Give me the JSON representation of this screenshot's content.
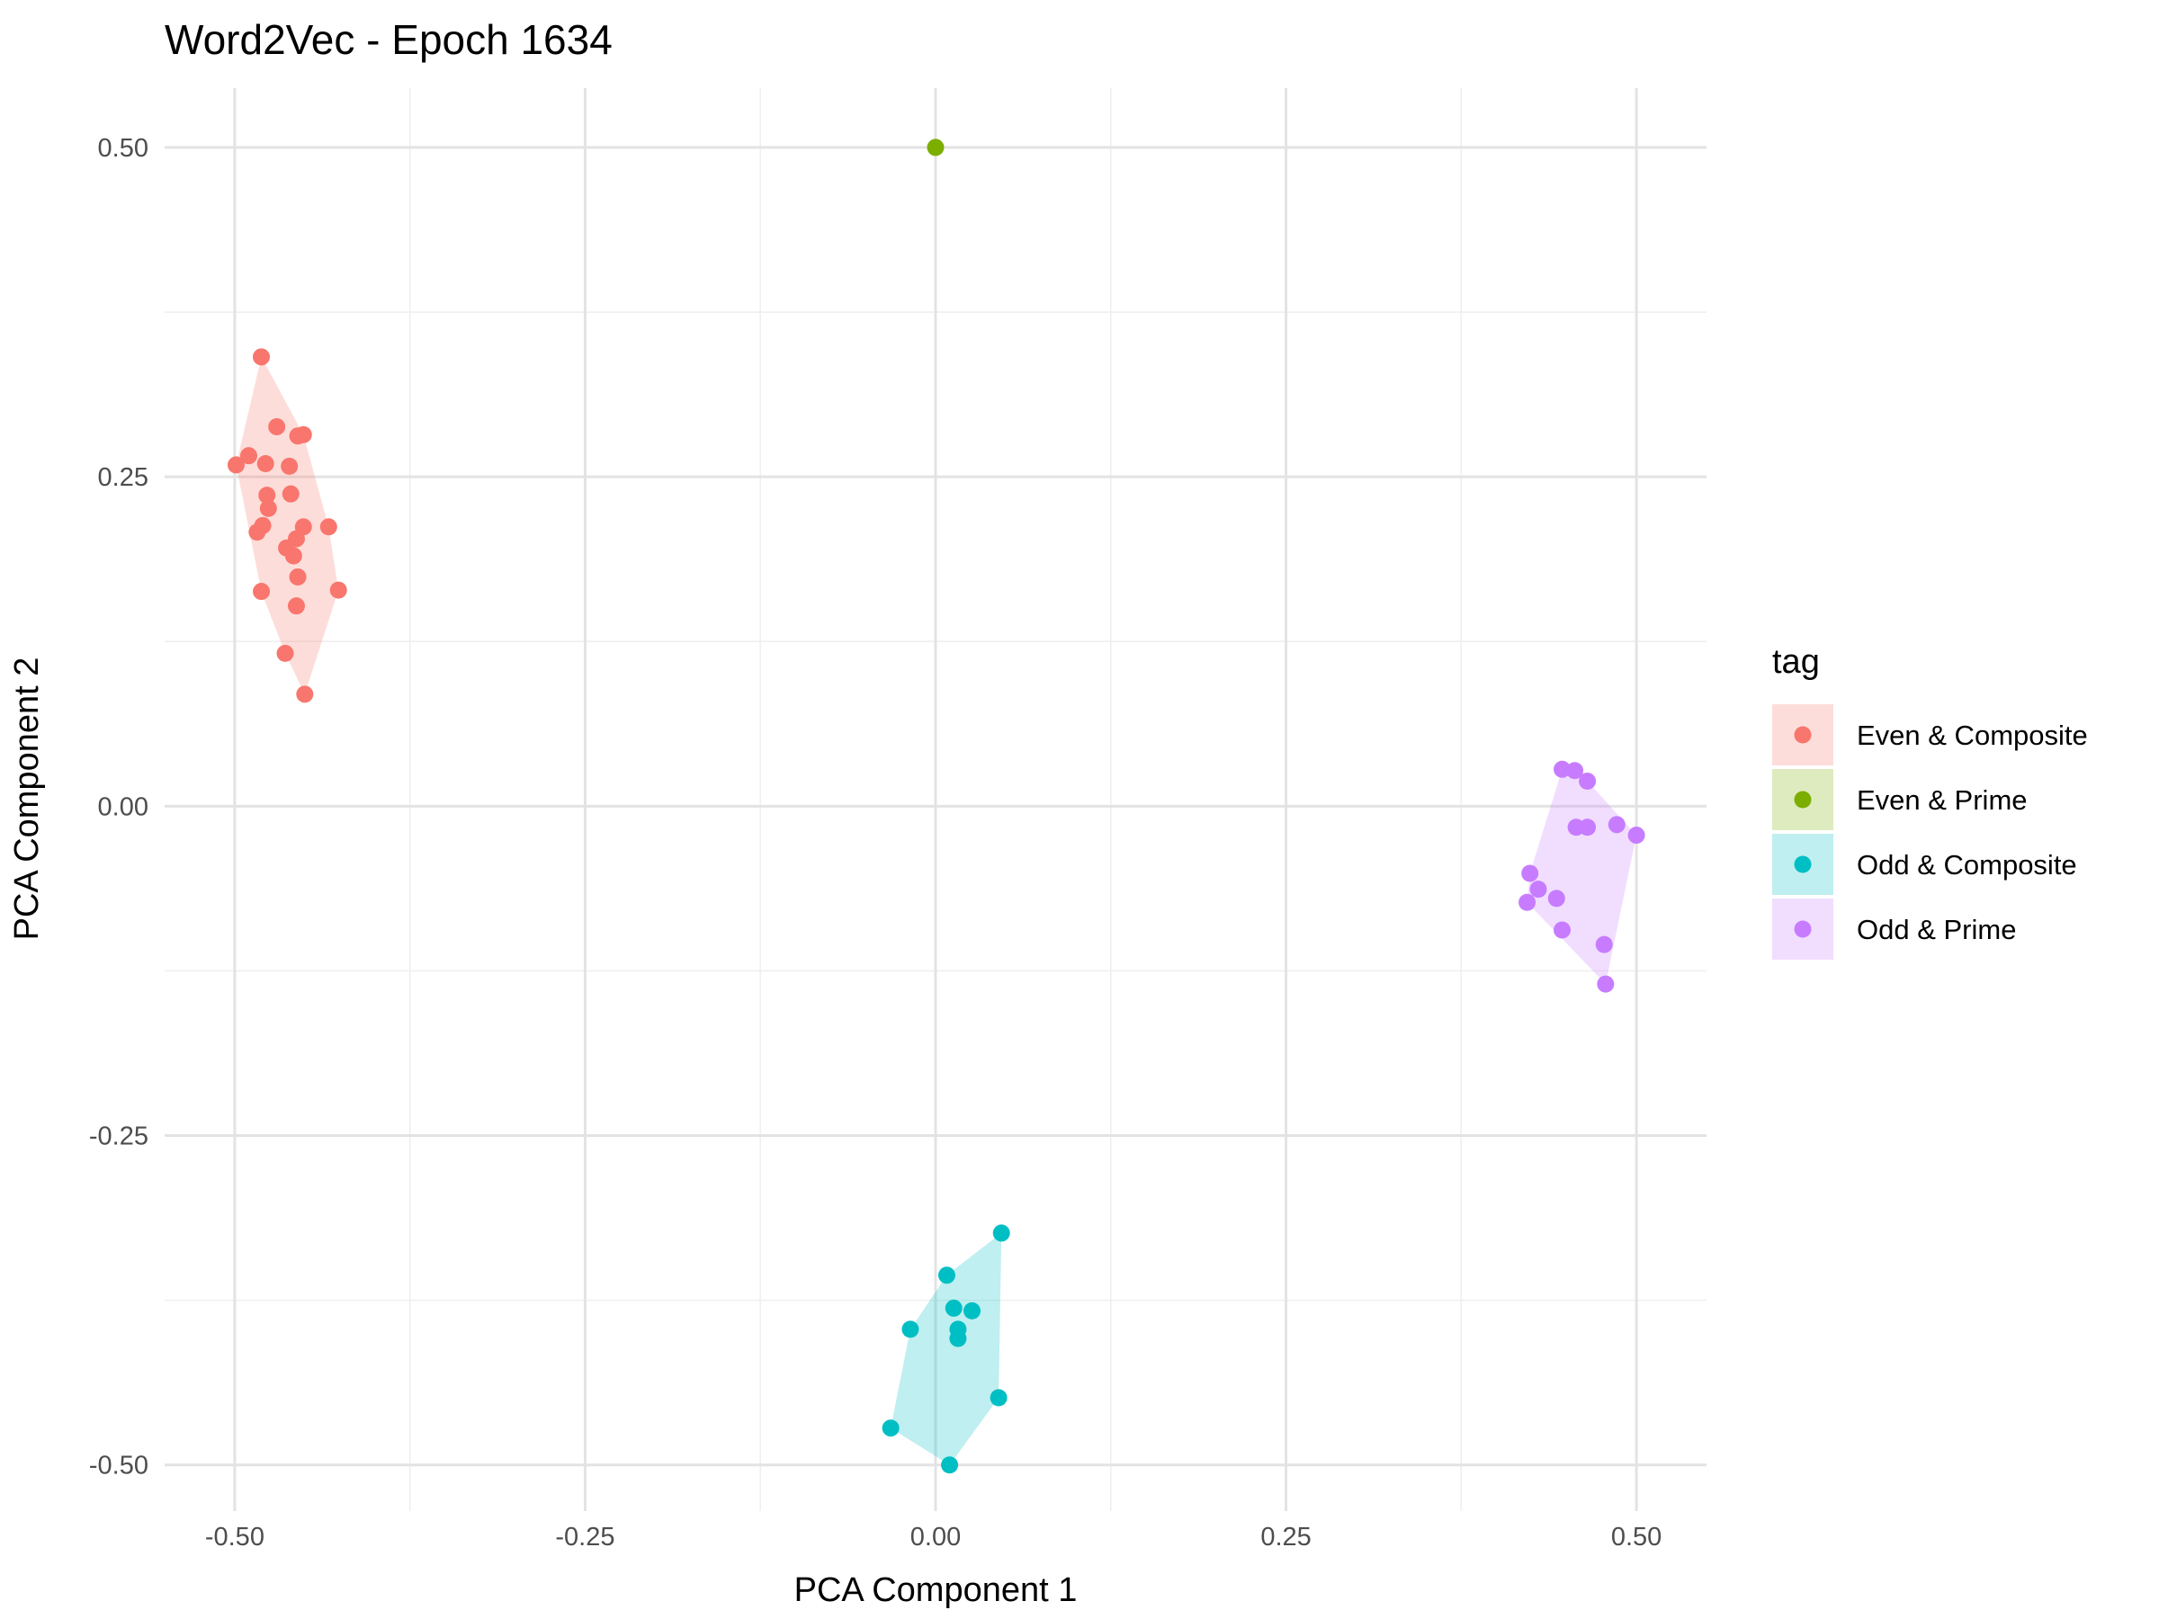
{
  "chart_data": {
    "type": "scatter",
    "title": "Word2Vec - Epoch 1634",
    "xlabel": "PCA Component 1",
    "ylabel": "PCA Component 2",
    "xlim": [
      -0.55,
      0.55
    ],
    "ylim": [
      -0.535,
      0.545
    ],
    "x_ticks": [
      -0.5,
      -0.25,
      0.0,
      0.25,
      0.5
    ],
    "x_tick_labels": [
      "-0.50",
      "-0.25",
      "0.00",
      "0.25",
      "0.50"
    ],
    "y_ticks": [
      -0.5,
      -0.25,
      0.0,
      0.25,
      0.5
    ],
    "y_tick_labels": [
      "-0.50",
      "-0.25",
      "0.00",
      "0.25",
      "0.50"
    ],
    "grid": true,
    "hulls": true,
    "legend": {
      "title": "tag",
      "position": "right"
    },
    "series": [
      {
        "name": "Even & Composite",
        "color": "#F8766D",
        "points": [
          [
            -0.481,
            0.341
          ],
          [
            -0.47,
            0.288
          ],
          [
            -0.451,
            0.282
          ],
          [
            -0.455,
            0.281
          ],
          [
            -0.49,
            0.266
          ],
          [
            -0.499,
            0.259
          ],
          [
            -0.478,
            0.26
          ],
          [
            -0.461,
            0.258
          ],
          [
            -0.477,
            0.236
          ],
          [
            -0.46,
            0.237
          ],
          [
            -0.476,
            0.226
          ],
          [
            -0.433,
            0.212
          ],
          [
            -0.451,
            0.212
          ],
          [
            -0.48,
            0.213
          ],
          [
            -0.484,
            0.208
          ],
          [
            -0.456,
            0.203
          ],
          [
            -0.463,
            0.196
          ],
          [
            -0.458,
            0.19
          ],
          [
            -0.455,
            0.174
          ],
          [
            -0.426,
            0.164
          ],
          [
            -0.481,
            0.163
          ],
          [
            -0.456,
            0.152
          ],
          [
            -0.464,
            0.116
          ],
          [
            -0.45,
            0.085
          ]
        ]
      },
      {
        "name": "Even & Prime",
        "color": "#7CAE00",
        "points": [
          [
            0.0,
            0.5
          ]
        ]
      },
      {
        "name": "Odd & Composite",
        "color": "#00BFC4",
        "points": [
          [
            0.047,
            -0.324
          ],
          [
            0.008,
            -0.356
          ],
          [
            0.013,
            -0.381
          ],
          [
            0.026,
            -0.383
          ],
          [
            0.016,
            -0.397
          ],
          [
            -0.018,
            -0.397
          ],
          [
            0.016,
            -0.404
          ],
          [
            0.045,
            -0.449
          ],
          [
            -0.032,
            -0.472
          ],
          [
            0.01,
            -0.5
          ]
        ]
      },
      {
        "name": "Odd & Prime",
        "color": "#C77CFF",
        "points": [
          [
            0.447,
            0.028
          ],
          [
            0.456,
            0.027
          ],
          [
            0.465,
            0.019
          ],
          [
            0.457,
            -0.016
          ],
          [
            0.465,
            -0.016
          ],
          [
            0.486,
            -0.014
          ],
          [
            0.5,
            -0.022
          ],
          [
            0.424,
            -0.051
          ],
          [
            0.43,
            -0.063
          ],
          [
            0.443,
            -0.07
          ],
          [
            0.422,
            -0.073
          ],
          [
            0.447,
            -0.094
          ],
          [
            0.477,
            -0.105
          ],
          [
            0.478,
            -0.135
          ]
        ]
      }
    ]
  }
}
